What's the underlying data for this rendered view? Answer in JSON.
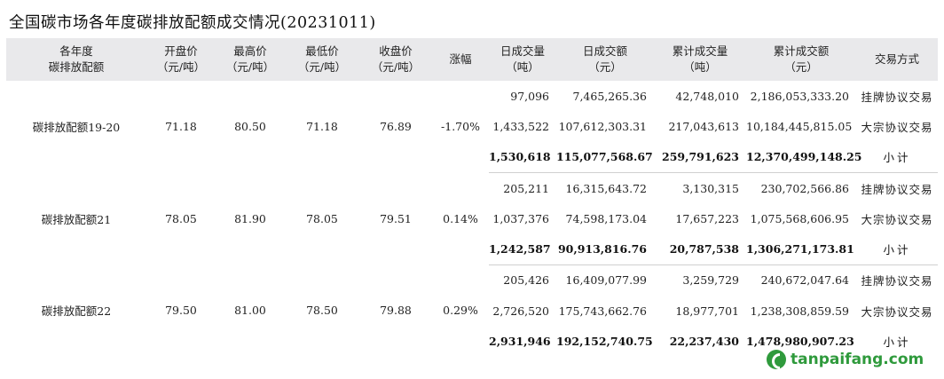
{
  "title": "全国碳市场各年度碳排放配额成交情况(20231011)",
  "headers": [
    [
      "各年度",
      "碳排放配额"
    ],
    [
      "开盘价",
      "（元/吨）"
    ],
    [
      "最高价",
      "（元/吨）"
    ],
    [
      "最低价",
      "（元/吨）"
    ],
    [
      "收盘价",
      "（元/吨）"
    ],
    [
      "涨幅",
      ""
    ],
    [
      "日成交量",
      "（吨）"
    ],
    [
      "日成交额",
      "（元）"
    ],
    [
      "累计成交量",
      "（吨）"
    ],
    [
      "累计成交额",
      "（元）"
    ],
    [
      "交易方式",
      ""
    ]
  ],
  "groups": [
    {
      "name": "碳排放配额19-20",
      "open": "71.18",
      "high": "80.50",
      "low": "71.18",
      "close": "76.89",
      "change": "-1.70%",
      "rows": [
        {
          "vol": "97,096",
          "amt": "7,465,265.36",
          "cum_vol": "42,748,010",
          "cum_amt": "2,186,053,333.20",
          "method": "挂牌协议交易"
        },
        {
          "vol": "1,433,522",
          "amt": "107,612,303.31",
          "cum_vol": "217,043,613",
          "cum_amt": "10,184,445,815.05",
          "method": "大宗协议交易"
        },
        {
          "vol": "1,530,618",
          "amt": "115,077,568.67",
          "cum_vol": "259,791,623",
          "cum_amt": "12,370,499,148.25",
          "method": "小计"
        }
      ]
    },
    {
      "name": "碳排放配额21",
      "open": "78.05",
      "high": "81.90",
      "low": "78.05",
      "close": "79.51",
      "change": "0.14%",
      "rows": [
        {
          "vol": "205,211",
          "amt": "16,315,643.72",
          "cum_vol": "3,130,315",
          "cum_amt": "230,702,566.86",
          "method": "挂牌协议交易"
        },
        {
          "vol": "1,037,376",
          "amt": "74,598,173.04",
          "cum_vol": "17,657,223",
          "cum_amt": "1,075,568,606.95",
          "method": "大宗协议交易"
        },
        {
          "vol": "1,242,587",
          "amt": "90,913,816.76",
          "cum_vol": "20,787,538",
          "cum_amt": "1,306,271,173.81",
          "method": "小计"
        }
      ]
    },
    {
      "name": "碳排放配额22",
      "open": "79.50",
      "high": "81.00",
      "low": "78.50",
      "close": "79.88",
      "change": "0.29%",
      "rows": [
        {
          "vol": "205,426",
          "amt": "16,409,077.99",
          "cum_vol": "3,259,729",
          "cum_amt": "240,672,047.64",
          "method": "挂牌协议交易"
        },
        {
          "vol": "2,726,520",
          "amt": "175,743,662.76",
          "cum_vol": "18,977,701",
          "cum_amt": "1,238,308,859.59",
          "method": "大宗协议交易"
        },
        {
          "vol": "2,931,946",
          "amt": "192,152,740.75",
          "cum_vol": "22,237,430",
          "cum_amt": "1,478,980,907.23",
          "method": "小计"
        }
      ]
    }
  ],
  "watermark": {
    "text": "tanpaifang.com",
    "color": "#2f9a3c",
    "icon": "leaf-logo-icon"
  }
}
